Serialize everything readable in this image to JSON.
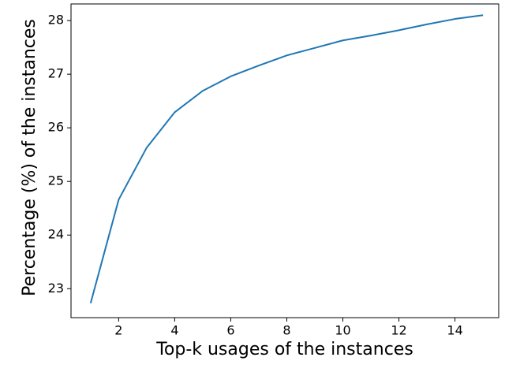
{
  "chart_data": {
    "type": "line",
    "xlabel": "Top-k usages of the instances",
    "ylabel": "Percentage (%) of the instances",
    "x": [
      1,
      2,
      3,
      4,
      5,
      6,
      7,
      8,
      9,
      10,
      11,
      12,
      13,
      14,
      15
    ],
    "series": [
      {
        "color": "#1f77b4",
        "values": [
          22.73,
          24.66,
          25.63,
          26.29,
          26.69,
          26.96,
          27.16,
          27.35,
          27.49,
          27.63,
          27.72,
          27.82,
          27.93,
          28.03,
          28.1
        ]
      }
    ],
    "xlim": [
      0.3,
      15.56
    ],
    "xticks": [
      2,
      4,
      6,
      8,
      10,
      12,
      14
    ],
    "ylim": [
      22.46,
      28.31
    ],
    "yticks": [
      23,
      24,
      25,
      26,
      27,
      28
    ],
    "grid": false
  }
}
